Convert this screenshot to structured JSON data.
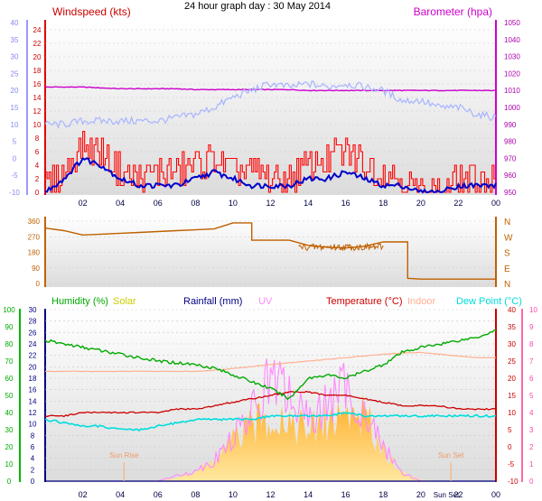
{
  "header": {
    "title": "24 hour graph day : 30 May 2014"
  },
  "time_ticks": [
    "02",
    "04",
    "06",
    "08",
    "10",
    "12",
    "14",
    "16",
    "18",
    "20",
    "22",
    "00"
  ],
  "colors": {
    "speed": "#ff0000",
    "avg": "#0000cc",
    "gust": "#a8b4ff",
    "baro": "#cc00cc",
    "dir": "#c06000",
    "hum": "#00aa00",
    "solar": "#cccc00",
    "rain": "#000080",
    "uv": "#ff88ff",
    "temp": "#cc0000",
    "indoor": "#ffb090",
    "dew": "#00dddd",
    "solarFill": "#ffcc44"
  },
  "chart_data": [
    {
      "type": "line",
      "panel": "wind",
      "title": "24 hour graph day : 30 May 2014",
      "legend": [
        "Windspeed (kts)",
        "Barometer (hpa)"
      ],
      "y_left_outer": [
        "40",
        "35",
        "30",
        "25",
        "20",
        "15",
        "10",
        "5",
        "0",
        "-5",
        "-10"
      ],
      "y_left_inner": [
        "24",
        "22",
        "20",
        "18",
        "16",
        "14",
        "12",
        "10",
        "8",
        "6",
        "4",
        "2",
        "0"
      ],
      "y_right": [
        "1050",
        "1040",
        "1030",
        "1020",
        "1010",
        "1000",
        "990",
        "980",
        "970",
        "960",
        "950"
      ],
      "x": [
        0,
        1,
        2,
        3,
        4,
        5,
        6,
        7,
        8,
        9,
        10,
        11,
        12,
        13,
        14,
        15,
        16,
        17,
        18,
        19,
        20,
        21,
        22,
        23,
        24
      ],
      "series": [
        {
          "name": "Barometer (hpa)",
          "axis": "right",
          "values": [
            1012,
            1012,
            1012,
            1011.5,
            1011,
            1011,
            1011,
            1011,
            1010.5,
            1010.5,
            1010.5,
            1010.5,
            1010.5,
            1010.5,
            1010,
            1010,
            1010,
            1010,
            1010,
            1010,
            1010,
            1010,
            1010,
            1010,
            1010
          ]
        },
        {
          "axis": "outer",
          "values": [
            10,
            10,
            11,
            11,
            11,
            11,
            11,
            12,
            13,
            15,
            18,
            20,
            22,
            21,
            22,
            21,
            22,
            21,
            20,
            17,
            17,
            15,
            15,
            13,
            12
          ]
        },
        {
          "name": "Windspeed (kts)",
          "axis": "inner",
          "values": [
            1,
            3,
            7,
            6,
            3,
            2,
            3,
            3,
            4,
            5,
            3,
            3,
            2,
            2,
            4,
            5,
            6,
            4,
            3,
            2,
            0,
            0,
            2,
            2,
            2
          ]
        },
        {
          "axis": "inner",
          "values": [
            0,
            2,
            5,
            4,
            2,
            1,
            1,
            1,
            2,
            3,
            2,
            1,
            1,
            1,
            2,
            2,
            3,
            2,
            1,
            1,
            0,
            0,
            1,
            1,
            1
          ]
        }
      ]
    },
    {
      "type": "line",
      "panel": "direction",
      "y_left": [
        "360",
        "270",
        "180",
        "90",
        "0"
      ],
      "y_right": [
        "N",
        "W",
        "S",
        "E",
        "N"
      ],
      "x": [
        0,
        1,
        2,
        3,
        4,
        5,
        6,
        7,
        8,
        9,
        10,
        10.5,
        11,
        12,
        13,
        14,
        15,
        16,
        17,
        18,
        19,
        19.3,
        20,
        22,
        24
      ],
      "series": [
        {
          "axis": "left",
          "values": [
            320,
            305,
            280,
            285,
            290,
            295,
            300,
            305,
            310,
            315,
            350,
            350,
            250,
            250,
            250,
            220,
            210,
            205,
            215,
            240,
            240,
            30,
            25,
            25,
            25
          ]
        }
      ]
    },
    {
      "type": "line",
      "panel": "climate",
      "legend": [
        "Humidity (%)",
        "Solar",
        "Rainfall (mm)",
        "UV",
        "Temperature (°C)",
        "Indoor",
        "Dew Point (°C)"
      ],
      "y_left_outer": [
        "100",
        "90",
        "80",
        "70",
        "60",
        "50",
        "40",
        "30",
        "20",
        "10",
        "0"
      ],
      "y_left_inner": [
        "30",
        "28",
        "26",
        "24",
        "22",
        "20",
        "18",
        "16",
        "14",
        "12",
        "10",
        "8",
        "6",
        "4",
        "2",
        "0"
      ],
      "y_right_outer": [
        "40",
        "35",
        "30",
        "25",
        "20",
        "15",
        "10",
        "5",
        "0",
        "-5",
        "-10"
      ],
      "y_right_inner": [
        "10",
        "9",
        "8",
        "7",
        "6",
        "5",
        "4",
        "3",
        "2",
        "1",
        "0"
      ],
      "annotations": [
        "Sun Rise",
        "Sun Set",
        "Sun Set"
      ],
      "x": [
        0,
        1,
        2,
        3,
        4,
        5,
        6,
        7,
        8,
        9,
        10,
        11,
        12,
        13,
        14,
        15,
        16,
        17,
        18,
        19,
        20,
        21,
        22,
        23,
        24
      ],
      "series": [
        {
          "name": "Humidity (%)",
          "axis": "outer",
          "values": [
            82,
            80,
            78,
            76,
            74,
            72,
            70,
            69,
            68,
            66,
            62,
            58,
            54,
            48,
            60,
            62,
            60,
            64,
            68,
            75,
            78,
            80,
            82,
            84,
            88
          ]
        },
        {
          "name": "Indoor",
          "axis": "right_outer",
          "values": [
            22,
            22,
            22,
            22,
            22,
            22,
            22,
            22,
            22,
            22.3,
            22.8,
            23.4,
            24,
            24.5,
            25,
            25.5,
            26,
            26.5,
            27,
            27.3,
            27.5,
            27,
            26.5,
            26,
            26
          ]
        },
        {
          "name": "Temperature (°C)",
          "axis": "right_outer",
          "values": [
            9,
            9,
            10,
            10,
            10,
            10,
            10,
            11,
            11,
            12,
            13,
            14,
            15,
            16,
            16,
            15,
            15,
            14,
            13,
            12,
            12,
            12,
            11,
            11,
            11
          ]
        },
        {
          "name": "Dew Point (°C)",
          "axis": "right_outer",
          "values": [
            8,
            7,
            6,
            6,
            5,
            5,
            6,
            7,
            8,
            8,
            8,
            8,
            9,
            9,
            9,
            9,
            10,
            9,
            9,
            9,
            9,
            9,
            9,
            9,
            9
          ]
        },
        {
          "name": "Solar",
          "axis": "outer",
          "values": [
            0,
            0,
            0,
            0,
            0,
            0,
            0.5,
            2,
            6,
            12,
            25,
            33,
            40,
            38,
            30,
            36,
            42,
            40,
            20,
            5,
            1,
            0,
            0,
            0,
            0
          ]
        },
        {
          "name": "UV",
          "axis": "right_inner",
          "values": [
            0,
            0,
            0,
            0,
            0,
            0,
            0,
            0.3,
            0.6,
            1.2,
            2.5,
            4,
            6,
            5,
            3.5,
            4.5,
            5.5,
            4,
            2,
            0.5,
            0,
            0,
            0,
            0,
            0
          ]
        },
        {
          "name": "Rainfall (mm)",
          "axis": "inner",
          "values": [
            0,
            0,
            0,
            0,
            0,
            0,
            0,
            0,
            0,
            0,
            0,
            0,
            0,
            0,
            0,
            0,
            0,
            0,
            0,
            0,
            0,
            0,
            0,
            0,
            0
          ]
        }
      ]
    }
  ]
}
